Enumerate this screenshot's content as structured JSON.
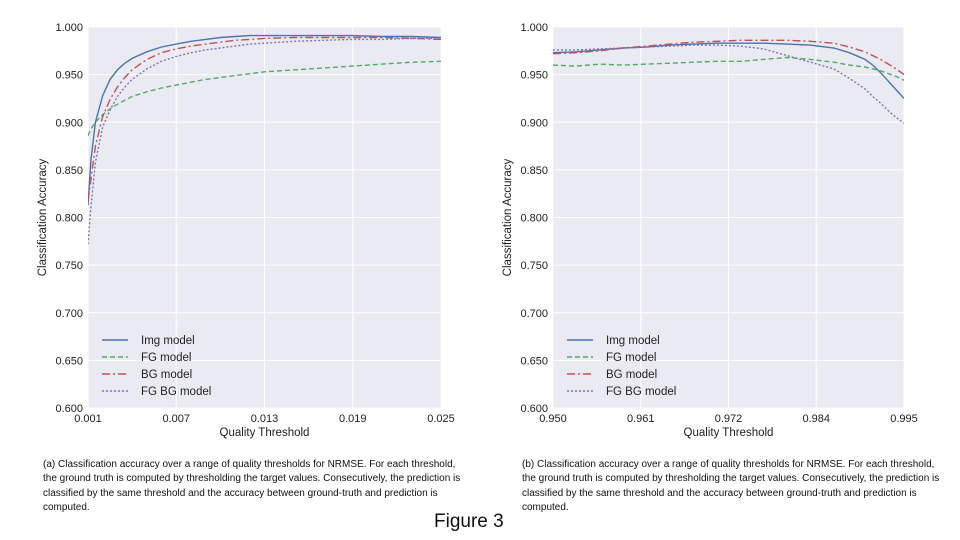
{
  "figure_title": "Figure 3",
  "captions": {
    "a": "(a) Classification accuracy over a range of quality thresholds for NRMSE. For each threshold, the ground truth is computed by thresholding the target values. Consecutively, the prediction is classified by the same threshold and the accuracy between ground-truth and prediction is computed.",
    "b": "(b) Classification accuracy over a range of quality thresholds for NRMSE. For each threshold, the ground truth is computed by thresholding the target values. Consecutively, the prediction is classified by the same threshold and the accuracy between ground-truth and prediction is computed."
  },
  "colors": {
    "background": "#eaeaf2",
    "grid": "#ffffff",
    "img": "#4c72b0",
    "fg": "#55a868",
    "bg": "#c44e52",
    "fgbg": "#8172b2"
  },
  "chart_data": [
    {
      "type": "line",
      "xlabel": "Quality Threshold",
      "ylabel": "Classification Accuracy",
      "xlim": [
        0.001,
        0.025
      ],
      "ylim": [
        0.6,
        1.0
      ],
      "xticks": [
        "0.001",
        "0.007",
        "0.013",
        "0.019",
        "0.025"
      ],
      "xtick_values": [
        0.001,
        0.007,
        0.013,
        0.019,
        0.025
      ],
      "yticks": [
        "0.600",
        "0.650",
        "0.700",
        "0.750",
        "0.800",
        "0.850",
        "0.900",
        "0.950",
        "1.000"
      ],
      "ytick_values": [
        0.6,
        0.65,
        0.7,
        0.75,
        0.8,
        0.85,
        0.9,
        0.95,
        1.0
      ],
      "legend_position": "lower-left",
      "x": [
        0.001,
        0.0012,
        0.0015,
        0.002,
        0.0025,
        0.003,
        0.0035,
        0.004,
        0.005,
        0.006,
        0.007,
        0.008,
        0.009,
        0.01,
        0.011,
        0.012,
        0.013,
        0.015,
        0.017,
        0.019,
        0.021,
        0.023,
        0.025
      ],
      "series": [
        {
          "name": "Img model",
          "key": "img",
          "dash": "",
          "values": [
            0.813,
            0.86,
            0.9,
            0.928,
            0.945,
            0.955,
            0.962,
            0.967,
            0.974,
            0.979,
            0.982,
            0.985,
            0.987,
            0.989,
            0.99,
            0.991,
            0.991,
            0.991,
            0.991,
            0.991,
            0.99,
            0.99,
            0.989
          ]
        },
        {
          "name": "FG model",
          "key": "fg",
          "dash": "5,3",
          "values": [
            0.886,
            0.893,
            0.9,
            0.908,
            0.914,
            0.919,
            0.923,
            0.927,
            0.932,
            0.936,
            0.939,
            0.942,
            0.945,
            0.947,
            0.949,
            0.951,
            0.953,
            0.955,
            0.957,
            0.959,
            0.961,
            0.963,
            0.964
          ]
        },
        {
          "name": "BG model",
          "key": "bg",
          "dash": "8,3,2,3",
          "values": [
            0.818,
            0.84,
            0.875,
            0.906,
            0.924,
            0.937,
            0.947,
            0.955,
            0.966,
            0.973,
            0.977,
            0.98,
            0.982,
            0.984,
            0.986,
            0.987,
            0.988,
            0.989,
            0.989,
            0.989,
            0.989,
            0.988,
            0.987
          ]
        },
        {
          "name": "FG BG model",
          "key": "fgbg",
          "dash": "2,2",
          "values": [
            0.772,
            0.81,
            0.858,
            0.895,
            0.913,
            0.927,
            0.937,
            0.945,
            0.956,
            0.964,
            0.969,
            0.973,
            0.976,
            0.978,
            0.98,
            0.982,
            0.983,
            0.985,
            0.986,
            0.987,
            0.987,
            0.988,
            0.988
          ]
        }
      ]
    },
    {
      "type": "line",
      "xlabel": "Quality Threshold",
      "ylabel": "Classification Accuracy",
      "xlim": [
        0.95,
        0.995
      ],
      "ylim": [
        0.6,
        1.0
      ],
      "xticks": [
        "0.950",
        "0.961",
        "0.972",
        "0.984",
        "0.995"
      ],
      "xtick_values": [
        0.95,
        0.96125,
        0.9725,
        0.98375,
        0.995
      ],
      "yticks": [
        "0.600",
        "0.650",
        "0.700",
        "0.750",
        "0.800",
        "0.850",
        "0.900",
        "0.950",
        "1.000"
      ],
      "ytick_values": [
        0.6,
        0.65,
        0.7,
        0.75,
        0.8,
        0.85,
        0.9,
        0.95,
        1.0
      ],
      "legend_position": "lower-left",
      "x": [
        0.95,
        0.953,
        0.956,
        0.959,
        0.962,
        0.965,
        0.968,
        0.971,
        0.974,
        0.977,
        0.98,
        0.983,
        0.986,
        0.988,
        0.99,
        0.991,
        0.992,
        0.993,
        0.994,
        0.995
      ],
      "series": [
        {
          "name": "Img model",
          "key": "img",
          "dash": "",
          "values": [
            0.973,
            0.974,
            0.976,
            0.978,
            0.979,
            0.981,
            0.982,
            0.983,
            0.983,
            0.983,
            0.982,
            0.981,
            0.978,
            0.973,
            0.966,
            0.96,
            0.952,
            0.943,
            0.934,
            0.925
          ]
        },
        {
          "name": "FG model",
          "key": "fg",
          "dash": "5,3",
          "values": [
            0.96,
            0.959,
            0.961,
            0.96,
            0.961,
            0.962,
            0.963,
            0.964,
            0.964,
            0.966,
            0.968,
            0.966,
            0.963,
            0.96,
            0.958,
            0.956,
            0.954,
            0.951,
            0.948,
            0.944
          ]
        },
        {
          "name": "BG model",
          "key": "bg",
          "dash": "8,3,2,3",
          "values": [
            0.972,
            0.973,
            0.975,
            0.978,
            0.98,
            0.982,
            0.984,
            0.985,
            0.986,
            0.986,
            0.986,
            0.985,
            0.983,
            0.979,
            0.974,
            0.97,
            0.966,
            0.961,
            0.956,
            0.95
          ]
        },
        {
          "name": "FG BG model",
          "key": "fgbg",
          "dash": "2,2",
          "values": [
            0.976,
            0.976,
            0.977,
            0.978,
            0.979,
            0.98,
            0.981,
            0.981,
            0.98,
            0.977,
            0.97,
            0.963,
            0.956,
            0.946,
            0.935,
            0.927,
            0.92,
            0.912,
            0.905,
            0.899
          ]
        }
      ]
    }
  ]
}
